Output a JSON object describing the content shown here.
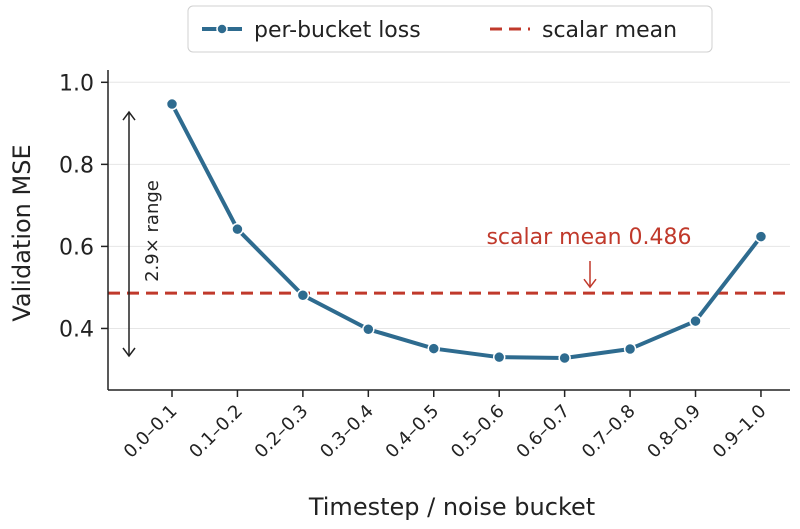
{
  "chart_data": {
    "type": "line",
    "title": "",
    "xlabel": "Timestep / noise bucket",
    "ylabel": "Validation MSE",
    "categories": [
      "0.0–0.1",
      "0.1–0.2",
      "0.2–0.3",
      "0.3–0.4",
      "0.4–0.5",
      "0.5–0.6",
      "0.6–0.7",
      "0.7–0.8",
      "0.8–0.9",
      "0.9–1.0"
    ],
    "series": [
      {
        "name": "per-bucket loss",
        "values": [
          0.947,
          0.642,
          0.481,
          0.398,
          0.351,
          0.33,
          0.328,
          0.35,
          0.418,
          0.624
        ],
        "color": "#2e6b8f"
      }
    ],
    "reference_line": {
      "name": "scalar mean",
      "value": 0.486,
      "color": "#c0392b",
      "style": "dashed"
    },
    "annotations": {
      "mean_label": "scalar mean 0.486",
      "range_label": "2.9× range"
    },
    "ylim": [
      0.25,
      1.03
    ],
    "yticks": [
      0.4,
      0.6,
      0.8,
      1.0
    ],
    "ytick_labels": [
      "0.4",
      "0.6",
      "0.8",
      "1.0"
    ],
    "grid": "horizontal",
    "legend_position": "top-center",
    "colors": {
      "line": "#2e6b8f",
      "reference": "#c0392b",
      "grid": "#e6e6e6",
      "axis": "#222222"
    }
  }
}
